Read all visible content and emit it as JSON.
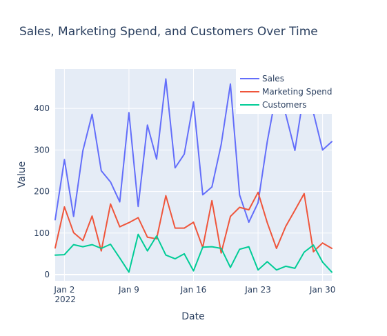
{
  "chart_data": {
    "type": "line",
    "title": "Sales, Marketing Spend, and Customers Over Time",
    "xlabel": "Date",
    "ylabel": "Value",
    "x": [
      "2022-01-01",
      "2022-01-02",
      "2022-01-03",
      "2022-01-04",
      "2022-01-05",
      "2022-01-06",
      "2022-01-07",
      "2022-01-08",
      "2022-01-09",
      "2022-01-10",
      "2022-01-11",
      "2022-01-12",
      "2022-01-13",
      "2022-01-14",
      "2022-01-15",
      "2022-01-16",
      "2022-01-17",
      "2022-01-18",
      "2022-01-19",
      "2022-01-20",
      "2022-01-21",
      "2022-01-22",
      "2022-01-23",
      "2022-01-24",
      "2022-01-25",
      "2022-01-26",
      "2022-01-27",
      "2022-01-28",
      "2022-01-29",
      "2022-01-30",
      "2022-01-31"
    ],
    "xrange": [
      "2022-01-01",
      "2022-01-31"
    ],
    "ylim": [
      -15,
      495
    ],
    "x_ticks": [
      {
        "date": "2022-01-02",
        "label": "Jan 2",
        "sublabel": "2022"
      },
      {
        "date": "2022-01-09",
        "label": "Jan 9",
        "sublabel": ""
      },
      {
        "date": "2022-01-16",
        "label": "Jan 16",
        "sublabel": ""
      },
      {
        "date": "2022-01-23",
        "label": "Jan 23",
        "sublabel": ""
      },
      {
        "date": "2022-01-30",
        "label": "Jan 30",
        "sublabel": ""
      }
    ],
    "y_ticks": [
      0,
      100,
      200,
      300,
      400
    ],
    "grid": true,
    "legend_position": "top-right",
    "background_color": "#e5ecf6",
    "series": [
      {
        "name": "Sales",
        "color": "#636efa",
        "values": [
          132,
          277,
          140,
          298,
          386,
          250,
          223,
          175,
          390,
          164,
          360,
          278,
          471,
          257,
          290,
          416,
          192,
          211,
          313,
          459,
          192,
          126,
          173,
          320,
          440,
          386,
          299,
          440,
          390,
          300,
          320
        ]
      },
      {
        "name": "Marketing Spend",
        "color": "#ef553b",
        "values": [
          64,
          163,
          101,
          82,
          141,
          57,
          170,
          115,
          125,
          137,
          90,
          86,
          190,
          112,
          112,
          126,
          65,
          178,
          52,
          140,
          162,
          156,
          198,
          125,
          63,
          116,
          155,
          195,
          55,
          76,
          63
        ]
      },
      {
        "name": "Customers",
        "color": "#00cc96",
        "values": [
          47,
          48,
          72,
          67,
          72,
          63,
          73,
          40,
          6,
          97,
          57,
          93,
          47,
          38,
          50,
          9,
          66,
          67,
          63,
          17,
          61,
          67,
          11,
          31,
          11,
          20,
          15,
          54,
          71,
          30,
          6
        ]
      }
    ]
  }
}
